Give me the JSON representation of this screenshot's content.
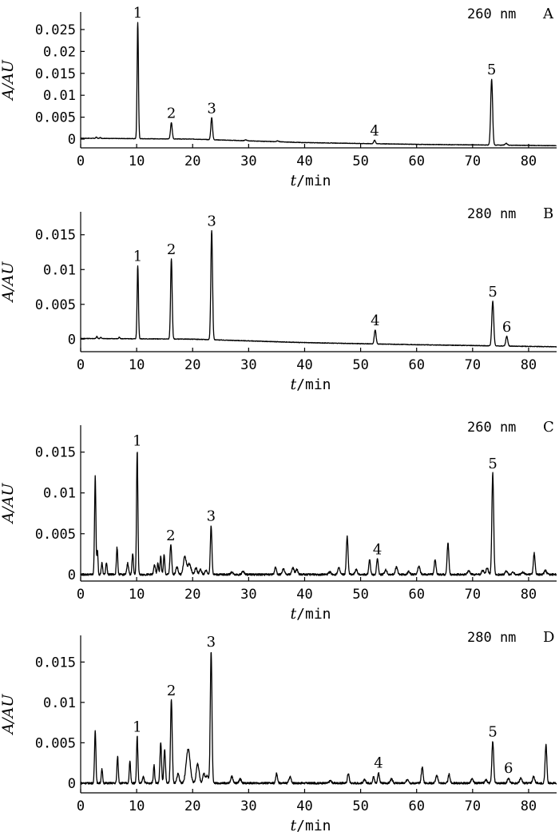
{
  "chart_data": [
    {
      "type": "line",
      "panel": "A",
      "wavelength": "260 nm",
      "xlabel_italic": "t",
      "xlabel_unit": "/min",
      "ylabel": "A/AU",
      "xlim": [
        0,
        85
      ],
      "ylim": [
        -0.002,
        0.029
      ],
      "x_ticks": [
        "0",
        "10",
        "20",
        "30",
        "40",
        "50",
        "60",
        "70",
        "80"
      ],
      "x_tick_values": [
        0,
        10,
        20,
        30,
        40,
        50,
        60,
        70,
        80
      ],
      "y_ticks": [
        "0",
        "0.005",
        "0.01",
        "0.015",
        "0.02",
        "0.025"
      ],
      "y_tick_values": [
        0,
        0.005,
        0.01,
        0.015,
        0.02,
        0.025
      ],
      "baseline": [
        [
          0,
          0.0002
        ],
        [
          20,
          0
        ],
        [
          40,
          -0.0008
        ],
        [
          60,
          -0.0012
        ],
        [
          85,
          -0.0015
        ]
      ],
      "noise": 5e-05,
      "peaks": [
        {
          "label": "1",
          "t": 10.2,
          "height": 0.0265,
          "width": 0.12
        },
        {
          "label": "2",
          "t": 16.2,
          "height": 0.0037,
          "width": 0.15
        },
        {
          "label": "3",
          "t": 23.4,
          "height": 0.005,
          "width": 0.15
        },
        {
          "label": "4",
          "t": 52.5,
          "height": 0.0008,
          "width": 0.15
        },
        {
          "label": "5",
          "t": 73.4,
          "height": 0.015,
          "width": 0.17
        },
        {
          "label": "",
          "t": 2.8,
          "height": 0.0003,
          "width": 0.1
        },
        {
          "label": "",
          "t": 3.5,
          "height": 0.0002,
          "width": 0.1
        },
        {
          "label": "",
          "t": 29.5,
          "height": 0.0002,
          "width": 0.2
        },
        {
          "label": "",
          "t": 35.2,
          "height": 0.0002,
          "width": 0.2
        },
        {
          "label": "",
          "t": 76.0,
          "height": 0.0004,
          "width": 0.2
        }
      ]
    },
    {
      "type": "line",
      "panel": "B",
      "wavelength": "280 nm",
      "xlabel_italic": "t",
      "xlabel_unit": "/min",
      "ylabel": "A/AU",
      "xlim": [
        0,
        85
      ],
      "ylim": [
        -0.0018,
        0.0183
      ],
      "x_ticks": [
        "0",
        "10",
        "20",
        "30",
        "40",
        "50",
        "60",
        "70",
        "80"
      ],
      "x_tick_values": [
        0,
        10,
        20,
        30,
        40,
        50,
        60,
        70,
        80
      ],
      "y_ticks": [
        "0",
        "0.005",
        "0.01",
        "0.015"
      ],
      "y_tick_values": [
        0,
        0.005,
        0.01,
        0.015
      ],
      "baseline": [
        [
          0,
          0.0001
        ],
        [
          20,
          0
        ],
        [
          40,
          -0.0005
        ],
        [
          60,
          -0.0008
        ],
        [
          85,
          -0.0011
        ]
      ],
      "noise": 4e-05,
      "peaks": [
        {
          "label": "1",
          "t": 10.2,
          "height": 0.0105,
          "width": 0.12
        },
        {
          "label": "2",
          "t": 16.2,
          "height": 0.0115,
          "width": 0.14
        },
        {
          "label": "3",
          "t": 23.4,
          "height": 0.0157,
          "width": 0.15
        },
        {
          "label": "4",
          "t": 52.6,
          "height": 0.002,
          "width": 0.16
        },
        {
          "label": "5",
          "t": 73.6,
          "height": 0.0064,
          "width": 0.17
        },
        {
          "label": "6",
          "t": 76.1,
          "height": 0.0014,
          "width": 0.17
        },
        {
          "label": "",
          "t": 2.9,
          "height": 0.0003,
          "width": 0.1
        },
        {
          "label": "",
          "t": 3.6,
          "height": 0.0002,
          "width": 0.1
        },
        {
          "label": "",
          "t": 6.9,
          "height": 0.0002,
          "width": 0.1
        }
      ]
    },
    {
      "type": "line",
      "panel": "C",
      "wavelength": "260 nm",
      "xlabel_italic": "t",
      "xlabel_unit": "/min",
      "ylabel": "A/AU",
      "xlim": [
        0,
        85
      ],
      "ylim": [
        -0.0008,
        0.0183
      ],
      "x_ticks": [
        "0",
        "10",
        "20",
        "30",
        "40",
        "50",
        "60",
        "70",
        "80"
      ],
      "x_tick_values": [
        0,
        10,
        20,
        30,
        40,
        50,
        60,
        70,
        80
      ],
      "y_ticks": [
        "0",
        "0.005",
        "0.01",
        "0.015"
      ],
      "y_tick_values": [
        0,
        0.005,
        0.01,
        0.015
      ],
      "baseline": [
        [
          0,
          0
        ],
        [
          85,
          0
        ]
      ],
      "noise": 0.00012,
      "peaks": [
        {
          "label": "",
          "t": 2.6,
          "height": 0.012,
          "width": 0.12
        },
        {
          "label": "",
          "t": 3.0,
          "height": 0.003,
          "width": 0.1
        },
        {
          "label": "",
          "t": 3.8,
          "height": 0.0014,
          "width": 0.12
        },
        {
          "label": "",
          "t": 4.6,
          "height": 0.0015,
          "width": 0.12
        },
        {
          "label": "",
          "t": 6.5,
          "height": 0.0033,
          "width": 0.12
        },
        {
          "label": "",
          "t": 8.4,
          "height": 0.0014,
          "width": 0.15
        },
        {
          "label": "",
          "t": 9.3,
          "height": 0.0026,
          "width": 0.12
        },
        {
          "label": "1",
          "t": 10.1,
          "height": 0.0152,
          "width": 0.12
        },
        {
          "label": "",
          "t": 13.2,
          "height": 0.0012,
          "width": 0.15
        },
        {
          "label": "",
          "t": 13.8,
          "height": 0.0014,
          "width": 0.12
        },
        {
          "label": "",
          "t": 14.3,
          "height": 0.0022,
          "width": 0.12
        },
        {
          "label": "",
          "t": 14.9,
          "height": 0.0024,
          "width": 0.12
        },
        {
          "label": "2",
          "t": 16.1,
          "height": 0.0036,
          "width": 0.15
        },
        {
          "label": "",
          "t": 17.2,
          "height": 0.0009,
          "width": 0.2
        },
        {
          "label": "",
          "t": 18.6,
          "height": 0.0022,
          "width": 0.25
        },
        {
          "label": "",
          "t": 19.4,
          "height": 0.0013,
          "width": 0.3
        },
        {
          "label": "",
          "t": 20.6,
          "height": 0.0008,
          "width": 0.2
        },
        {
          "label": "",
          "t": 21.4,
          "height": 0.0006,
          "width": 0.2
        },
        {
          "label": "",
          "t": 22.4,
          "height": 0.0005,
          "width": 0.2
        },
        {
          "label": "3",
          "t": 23.3,
          "height": 0.006,
          "width": 0.14
        },
        {
          "label": "",
          "t": 27.0,
          "height": 0.0003,
          "width": 0.2
        },
        {
          "label": "",
          "t": 29.0,
          "height": 0.0004,
          "width": 0.2
        },
        {
          "label": "",
          "t": 34.8,
          "height": 0.001,
          "width": 0.15
        },
        {
          "label": "",
          "t": 36.2,
          "height": 0.0007,
          "width": 0.2
        },
        {
          "label": "",
          "t": 37.9,
          "height": 0.0008,
          "width": 0.2
        },
        {
          "label": "",
          "t": 38.6,
          "height": 0.0006,
          "width": 0.2
        },
        {
          "label": "",
          "t": 44.5,
          "height": 0.0003,
          "width": 0.2
        },
        {
          "label": "",
          "t": 46.1,
          "height": 0.0008,
          "width": 0.2
        },
        {
          "label": "",
          "t": 47.6,
          "height": 0.0047,
          "width": 0.15
        },
        {
          "label": "",
          "t": 49.2,
          "height": 0.0006,
          "width": 0.2
        },
        {
          "label": "",
          "t": 51.6,
          "height": 0.0018,
          "width": 0.15
        },
        {
          "label": "4",
          "t": 53.0,
          "height": 0.0019,
          "width": 0.15
        },
        {
          "label": "",
          "t": 54.5,
          "height": 0.0006,
          "width": 0.2
        },
        {
          "label": "",
          "t": 56.4,
          "height": 0.0009,
          "width": 0.2
        },
        {
          "label": "",
          "t": 58.6,
          "height": 0.0004,
          "width": 0.2
        },
        {
          "label": "",
          "t": 60.4,
          "height": 0.001,
          "width": 0.2
        },
        {
          "label": "",
          "t": 63.3,
          "height": 0.0018,
          "width": 0.16
        },
        {
          "label": "",
          "t": 65.6,
          "height": 0.0039,
          "width": 0.15
        },
        {
          "label": "",
          "t": 69.3,
          "height": 0.0005,
          "width": 0.2
        },
        {
          "label": "",
          "t": 71.8,
          "height": 0.0005,
          "width": 0.2
        },
        {
          "label": "",
          "t": 72.6,
          "height": 0.0008,
          "width": 0.2
        },
        {
          "label": "5",
          "t": 73.6,
          "height": 0.0124,
          "width": 0.16
        },
        {
          "label": "",
          "t": 76.0,
          "height": 0.0004,
          "width": 0.2
        },
        {
          "label": "",
          "t": 77.2,
          "height": 0.0003,
          "width": 0.2
        },
        {
          "label": "",
          "t": 79.0,
          "height": 0.0003,
          "width": 0.2
        },
        {
          "label": "",
          "t": 81.0,
          "height": 0.0026,
          "width": 0.15
        },
        {
          "label": "",
          "t": 83.0,
          "height": 0.0005,
          "width": 0.2
        }
      ]
    },
    {
      "type": "line",
      "panel": "D",
      "wavelength": "280 nm",
      "xlabel_italic": "t",
      "xlabel_unit": "/min",
      "ylabel": "A/AU",
      "xlim": [
        0,
        85
      ],
      "ylim": [
        -0.0012,
        0.0183
      ],
      "x_ticks": [
        "0",
        "10",
        "20",
        "30",
        "40",
        "50",
        "60",
        "70",
        "80"
      ],
      "x_tick_values": [
        0,
        10,
        20,
        30,
        40,
        50,
        60,
        70,
        80
      ],
      "y_ticks": [
        "0",
        "0.005",
        "0.01",
        "0.015"
      ],
      "y_tick_values": [
        0,
        0.005,
        0.01,
        0.015
      ],
      "baseline": [
        [
          0,
          0
        ],
        [
          85,
          0
        ]
      ],
      "noise": 0.00012,
      "peaks": [
        {
          "label": "",
          "t": 2.6,
          "height": 0.0066,
          "width": 0.12
        },
        {
          "label": "",
          "t": 3.8,
          "height": 0.0017,
          "width": 0.12
        },
        {
          "label": "",
          "t": 6.6,
          "height": 0.0033,
          "width": 0.12
        },
        {
          "label": "",
          "t": 8.8,
          "height": 0.0027,
          "width": 0.12
        },
        {
          "label": "1",
          "t": 10.1,
          "height": 0.0058,
          "width": 0.12
        },
        {
          "label": "",
          "t": 11.2,
          "height": 0.0008,
          "width": 0.15
        },
        {
          "label": "",
          "t": 13.1,
          "height": 0.0022,
          "width": 0.12
        },
        {
          "label": "",
          "t": 14.3,
          "height": 0.005,
          "width": 0.14
        },
        {
          "label": "",
          "t": 15.0,
          "height": 0.0041,
          "width": 0.14
        },
        {
          "label": "2",
          "t": 16.2,
          "height": 0.0103,
          "width": 0.15
        },
        {
          "label": "",
          "t": 17.4,
          "height": 0.0012,
          "width": 0.2
        },
        {
          "label": "",
          "t": 19.2,
          "height": 0.0042,
          "width": 0.35
        },
        {
          "label": "",
          "t": 20.9,
          "height": 0.0024,
          "width": 0.25
        },
        {
          "label": "",
          "t": 22.0,
          "height": 0.0012,
          "width": 0.2
        },
        {
          "label": "",
          "t": 22.6,
          "height": 0.001,
          "width": 0.2
        },
        {
          "label": "3",
          "t": 23.3,
          "height": 0.0163,
          "width": 0.15
        },
        {
          "label": "",
          "t": 27.0,
          "height": 0.0008,
          "width": 0.2
        },
        {
          "label": "",
          "t": 28.5,
          "height": 0.0005,
          "width": 0.2
        },
        {
          "label": "",
          "t": 35.0,
          "height": 0.0012,
          "width": 0.15
        },
        {
          "label": "",
          "t": 37.4,
          "height": 0.0008,
          "width": 0.2
        },
        {
          "label": "",
          "t": 44.6,
          "height": 0.0003,
          "width": 0.2
        },
        {
          "label": "",
          "t": 47.8,
          "height": 0.0012,
          "width": 0.16
        },
        {
          "label": "",
          "t": 50.7,
          "height": 0.0004,
          "width": 0.2
        },
        {
          "label": "",
          "t": 52.3,
          "height": 0.0008,
          "width": 0.15
        },
        {
          "label": "4",
          "t": 53.2,
          "height": 0.0013,
          "width": 0.15
        },
        {
          "label": "",
          "t": 55.5,
          "height": 0.0005,
          "width": 0.2
        },
        {
          "label": "",
          "t": 58.4,
          "height": 0.0005,
          "width": 0.2
        },
        {
          "label": "",
          "t": 61.0,
          "height": 0.002,
          "width": 0.16
        },
        {
          "label": "",
          "t": 63.6,
          "height": 0.0009,
          "width": 0.2
        },
        {
          "label": "",
          "t": 65.8,
          "height": 0.0011,
          "width": 0.16
        },
        {
          "label": "",
          "t": 69.9,
          "height": 0.0005,
          "width": 0.2
        },
        {
          "label": "",
          "t": 72.4,
          "height": 0.0004,
          "width": 0.2
        },
        {
          "label": "5",
          "t": 73.6,
          "height": 0.0052,
          "width": 0.16
        },
        {
          "label": "6",
          "t": 76.4,
          "height": 0.0007,
          "width": 0.17
        },
        {
          "label": "",
          "t": 78.6,
          "height": 0.0006,
          "width": 0.2
        },
        {
          "label": "",
          "t": 80.9,
          "height": 0.0008,
          "width": 0.2
        },
        {
          "label": "",
          "t": 83.1,
          "height": 0.0048,
          "width": 0.15
        }
      ]
    }
  ]
}
